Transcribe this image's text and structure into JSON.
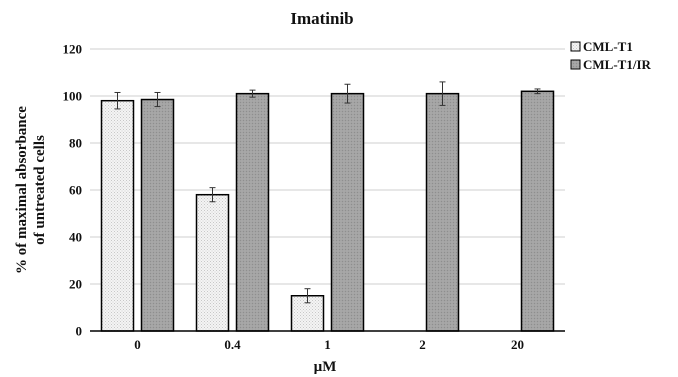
{
  "chart_data": {
    "type": "bar",
    "title": "Imatinib",
    "xlabel": "µM",
    "ylabel_lines": [
      "% of maximal absorbance",
      "of untreated cells"
    ],
    "categories": [
      "0",
      "0.4",
      "1",
      "2",
      "20"
    ],
    "ylim": [
      0,
      120
    ],
    "yticks": [
      0,
      20,
      40,
      60,
      80,
      100,
      120
    ],
    "grid": true,
    "legend_position": "top-right",
    "series": [
      {
        "name": "CML-T1",
        "values": [
          98,
          58,
          15,
          null,
          null
        ],
        "errors": [
          3.5,
          3,
          3,
          null,
          null
        ],
        "color": "#f2f2f2"
      },
      {
        "name": "CML-T1/IR",
        "values": [
          98.5,
          101,
          101,
          101,
          102
        ],
        "errors": [
          3,
          1.5,
          4,
          5,
          1
        ],
        "color": "#a6a6a6"
      }
    ]
  }
}
